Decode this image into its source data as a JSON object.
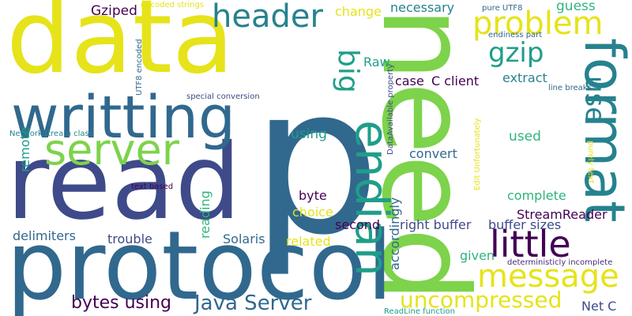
{
  "palette": {
    "yellow": "#e6e31a",
    "lime": "#7dd34b",
    "green": "#2fb47c",
    "teal": "#1f9e89",
    "cyan": "#26828e",
    "blue": "#31688e",
    "indigo": "#3e4a89",
    "purple": "#472d7b",
    "dark": "#440154"
  },
  "words": [
    {
      "text": "p",
      "color": "blue"
    },
    {
      "text": "need",
      "color": "lime"
    },
    {
      "text": "data",
      "color": "yellow"
    },
    {
      "text": "read",
      "color": "indigo"
    },
    {
      "text": "protocol",
      "color": "blue"
    },
    {
      "text": "writting",
      "color": "blue"
    },
    {
      "text": "server",
      "color": "lime"
    },
    {
      "text": "format",
      "color": "cyan"
    },
    {
      "text": "endian",
      "color": "teal"
    },
    {
      "text": "header",
      "color": "cyan"
    },
    {
      "text": "problem",
      "color": "yellow"
    },
    {
      "text": "message",
      "color": "yellow"
    },
    {
      "text": "little",
      "color": "dark"
    },
    {
      "text": "big",
      "color": "teal"
    },
    {
      "text": "gzip",
      "color": "teal"
    },
    {
      "text": "use",
      "color": "cyan"
    },
    {
      "text": "uncompressed",
      "color": "yellow"
    },
    {
      "text": "Java Server",
      "color": "blue"
    },
    {
      "text": "bytes using",
      "color": "dark"
    },
    {
      "text": "Gziped",
      "color": "dark"
    },
    {
      "text": "change",
      "color": "yellow"
    },
    {
      "text": "necessary",
      "color": "cyan"
    },
    {
      "text": "guess",
      "color": "green"
    },
    {
      "text": "Raw",
      "color": "teal"
    },
    {
      "text": "case",
      "color": "dark"
    },
    {
      "text": "C client",
      "color": "dark"
    },
    {
      "text": "extract",
      "color": "cyan"
    },
    {
      "text": "using",
      "color": "teal"
    },
    {
      "text": "used",
      "color": "green"
    },
    {
      "text": "convert",
      "color": "blue"
    },
    {
      "text": "remote",
      "color": "teal"
    },
    {
      "text": "reading",
      "color": "green"
    },
    {
      "text": "byte",
      "color": "dark"
    },
    {
      "text": "choice",
      "color": "yellow"
    },
    {
      "text": "complete",
      "color": "green"
    },
    {
      "text": "StreamReader",
      "color": "dark"
    },
    {
      "text": "second",
      "color": "dark"
    },
    {
      "text": "right buffer",
      "color": "indigo"
    },
    {
      "text": "buffer sizes",
      "color": "indigo"
    },
    {
      "text": "delimiters",
      "color": "blue"
    },
    {
      "text": "trouble",
      "color": "indigo"
    },
    {
      "text": "Solaris",
      "color": "blue"
    },
    {
      "text": "related",
      "color": "yellow"
    },
    {
      "text": "accordingly",
      "color": "blue"
    },
    {
      "text": "given",
      "color": "green"
    },
    {
      "text": "Net C",
      "color": "indigo"
    },
    {
      "text": "encoded strings",
      "color": "yellow"
    },
    {
      "text": "pure UTF8",
      "color": "blue"
    },
    {
      "text": "endiness part",
      "color": "blue"
    },
    {
      "text": "UTF8 encoded",
      "color": "blue"
    },
    {
      "text": "special conversion",
      "color": "indigo"
    },
    {
      "text": "line breaks",
      "color": "blue"
    },
    {
      "text": "NetworkStream class",
      "color": "cyan"
    },
    {
      "text": "DataAvailable property",
      "color": "indigo"
    },
    {
      "text": "Edit Unfortunately",
      "color": "yellow"
    },
    {
      "text": "purely text",
      "color": "yellow"
    },
    {
      "text": "text based",
      "color": "dark"
    },
    {
      "text": "deterministicly incomplete",
      "color": "purple"
    },
    {
      "text": "ReadLine function",
      "color": "teal"
    }
  ]
}
